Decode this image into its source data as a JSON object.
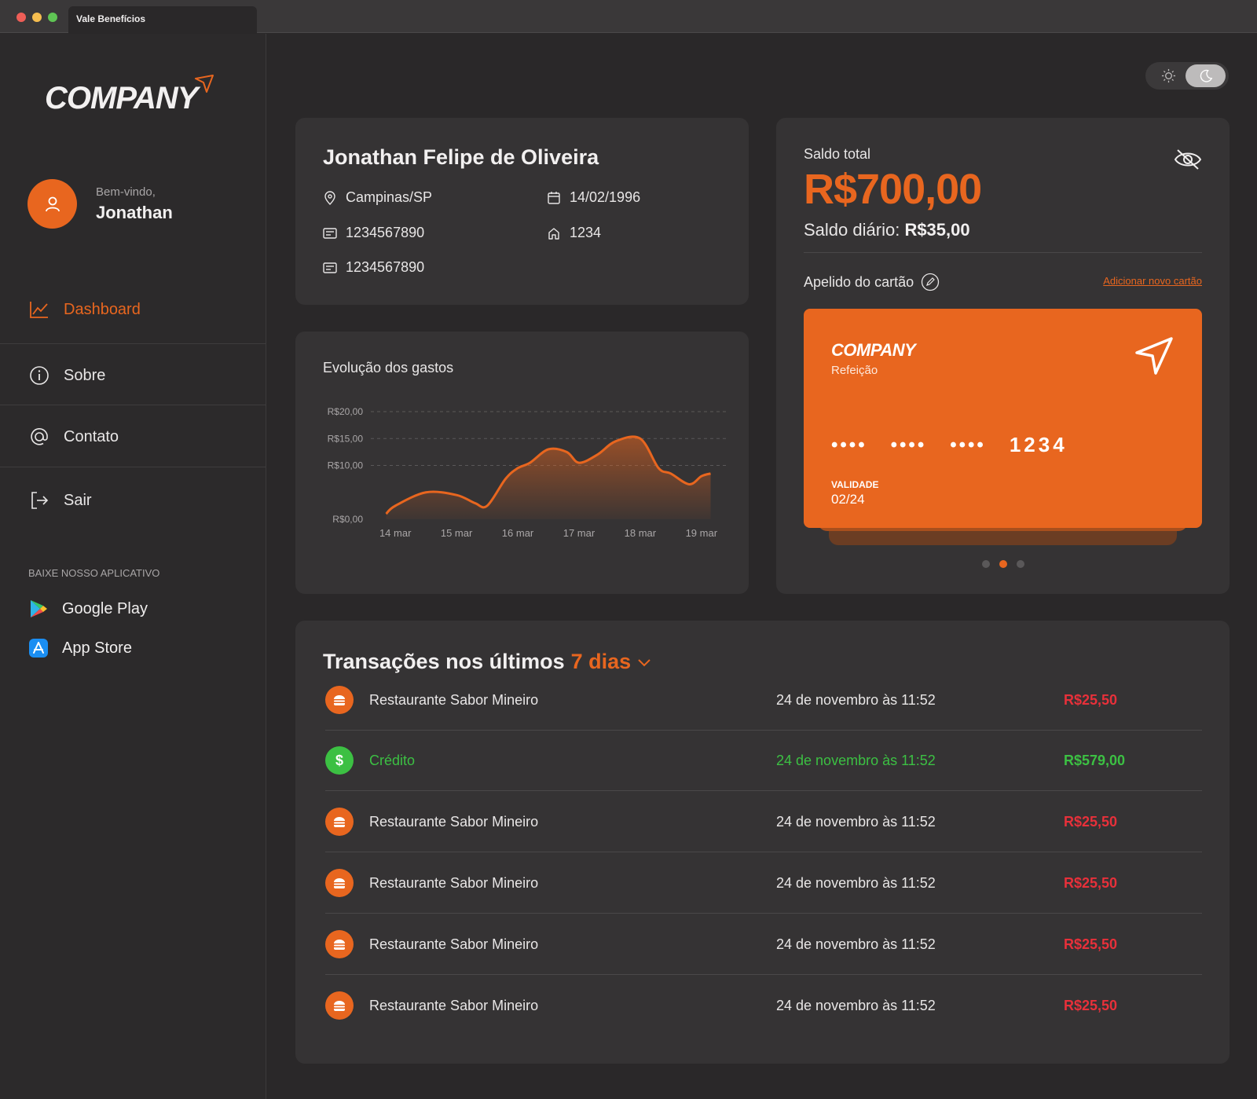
{
  "window": {
    "tab_title": "Vale Benefícios"
  },
  "sidebar": {
    "logo": "COMPANY",
    "welcome": "Bem-vindo,",
    "user_name": "Jonathan",
    "nav": [
      {
        "label": "Dashboard",
        "icon": "chart-line-icon",
        "active": true
      },
      {
        "label": "Sobre",
        "icon": "info-icon"
      },
      {
        "label": "Contato",
        "icon": "at-icon"
      },
      {
        "label": "Sair",
        "icon": "logout-icon"
      }
    ],
    "apps_title": "BAIXE NOSSO APLICATIVO",
    "apps": [
      {
        "label": "Google Play",
        "icon": "google-play-icon"
      },
      {
        "label": "App Store",
        "icon": "app-store-icon"
      }
    ]
  },
  "theme": {
    "mode": "dark"
  },
  "profile": {
    "name": "Jonathan Felipe de Oliveira",
    "city": "Campinas/SP",
    "birth": "14/02/1996",
    "doc1": "1234567890",
    "number": "1234",
    "doc2": "1234567890"
  },
  "balance": {
    "total_label": "Saldo total",
    "total_value": "R$700,00",
    "daily_label": "Saldo diário:",
    "daily_value": "R$35,00",
    "nickname_label": "Apelido do cartão",
    "add_card": "Adicionar novo cartão",
    "card": {
      "brand": "COMPANY",
      "type": "Refeição",
      "masked": [
        "••••",
        "••••",
        "••••"
      ],
      "last4": "1234",
      "validity_label": "VALIDADE",
      "validity": "02/24"
    },
    "pager_active": 1,
    "pager_count": 3
  },
  "chart_data": {
    "type": "area",
    "title": "Evolução dos gastos",
    "categories": [
      "14 mar",
      "15 mar",
      "16 mar",
      "17 mar",
      "18 mar",
      "19 mar"
    ],
    "y_ticks": [
      "R$0,00",
      "R$10,00",
      "R$15,00",
      "R$20,00"
    ],
    "series": [
      {
        "x": [
          13.85,
          14.0,
          14.5,
          15.0,
          15.3,
          15.5,
          15.8,
          16.0,
          16.2,
          16.5,
          16.8,
          17.0,
          17.3,
          17.6,
          18.0,
          18.3,
          18.5,
          18.8,
          19.0,
          19.15
        ],
        "values": [
          1,
          2.5,
          5,
          4.5,
          3,
          2.5,
          7.5,
          9.5,
          10.5,
          13,
          12.5,
          10.5,
          12,
          14.5,
          15,
          9.5,
          8.5,
          6.5,
          8,
          8.5
        ]
      }
    ],
    "ylim": [
      0,
      20
    ],
    "grid": true,
    "color": "#e8661f"
  },
  "transactions": {
    "title": "Transações nos últimos",
    "period": "7 dias",
    "rows": [
      {
        "name": "Restaurante Sabor Mineiro",
        "date": "24 de novembro às 11:52",
        "amount": "R$25,50",
        "kind": "debit",
        "icon": "burger-icon"
      },
      {
        "name": "Crédito",
        "date": "24 de novembro às 11:52",
        "amount": "R$579,00",
        "kind": "credit",
        "icon": "dollar-icon"
      },
      {
        "name": "Restaurante Sabor Mineiro",
        "date": "24 de novembro às 11:52",
        "amount": "R$25,50",
        "kind": "debit",
        "icon": "burger-icon"
      },
      {
        "name": "Restaurante Sabor Mineiro",
        "date": "24 de novembro às 11:52",
        "amount": "R$25,50",
        "kind": "debit",
        "icon": "burger-icon"
      },
      {
        "name": "Restaurante Sabor Mineiro",
        "date": "24 de novembro às 11:52",
        "amount": "R$25,50",
        "kind": "debit",
        "icon": "burger-icon"
      },
      {
        "name": "Restaurante Sabor Mineiro",
        "date": "24 de novembro às 11:52",
        "amount": "R$25,50",
        "kind": "debit",
        "icon": "burger-icon"
      }
    ]
  },
  "colors": {
    "accent": "#e8661f",
    "credit": "#3cc043",
    "debit": "#e8303a"
  }
}
